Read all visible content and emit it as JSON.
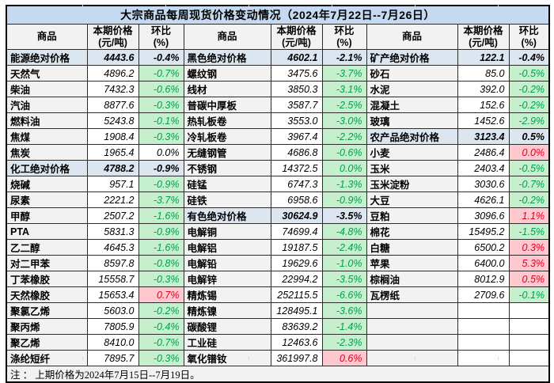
{
  "title": "大宗商品每周现货价格变动情况（2024年7月22日--7月26日）",
  "note": "注 ： 上期价格为2024年7月15日--7月19日。",
  "column_headers": {
    "name": "商品",
    "price": "本期价格\n(元/吨)",
    "change": "环比\n(%)"
  },
  "colors": {
    "title_bg": "#c5d9f1",
    "section_row_bg": "#dce6f1",
    "name_column_bg": "#f2f2f2",
    "decrease_bg": "#c6efce",
    "decrease_text": "#00a050",
    "increase_bg": "#ffc7ce",
    "increase_text": "#de0022",
    "border": "#000000"
  },
  "groups": [
    {
      "rows": [
        {
          "type": "section",
          "name": "能源绝对价格",
          "price": "4443.6",
          "change": "-0.4%"
        },
        {
          "type": "item",
          "name": "天然气",
          "price": "4896.2",
          "change": "-0.7%",
          "dir": "down"
        },
        {
          "type": "item",
          "name": "柴油",
          "price": "7432.3",
          "change": "-0.6%",
          "dir": "down"
        },
        {
          "type": "item",
          "name": "汽油",
          "price": "8877.6",
          "change": "-0.3%",
          "dir": "down"
        },
        {
          "type": "item",
          "name": "燃料油",
          "price": "5243.8",
          "change": "-0.1%",
          "dir": "down"
        },
        {
          "type": "item",
          "name": "焦煤",
          "price": "1908.4",
          "change": "-0.3%",
          "dir": "down"
        },
        {
          "type": "item",
          "name": "焦炭",
          "price": "1965.4",
          "change": "0.0%"
        },
        {
          "type": "section",
          "name": "化工绝对价格",
          "price": "4788.2",
          "change": "-0.9%"
        },
        {
          "type": "item",
          "name": "烧碱",
          "price": "957.1",
          "change": "-0.9%",
          "dir": "down"
        },
        {
          "type": "item",
          "name": "尿素",
          "price": "2221.2",
          "change": "-3.7%",
          "dir": "down"
        },
        {
          "type": "item",
          "name": "甲醇",
          "price": "2507.2",
          "change": "-1.6%",
          "dir": "down"
        },
        {
          "type": "item",
          "name": "PTA",
          "price": "5831.3",
          "change": "-0.9%",
          "dir": "down"
        },
        {
          "type": "item",
          "name": "乙二醇",
          "price": "4645.3",
          "change": "-1.6%",
          "dir": "down"
        },
        {
          "type": "item",
          "name": "对二甲苯",
          "price": "8597.8",
          "change": "-0.8%",
          "dir": "down"
        },
        {
          "type": "item",
          "name": "丁苯橡胶",
          "price": "15558.7",
          "change": "-0.3%",
          "dir": "down"
        },
        {
          "type": "item",
          "name": "天然橡胶",
          "price": "15653.4",
          "change": "0.7%",
          "dir": "up"
        },
        {
          "type": "item",
          "name": "聚氯乙烯",
          "price": "5603.0",
          "change": "-0.2%",
          "dir": "down"
        },
        {
          "type": "item",
          "name": "聚丙烯",
          "price": "7805.9",
          "change": "-0.4%",
          "dir": "down"
        },
        {
          "type": "item",
          "name": "聚乙烯",
          "price": "8410.0",
          "change": "-0.7%",
          "dir": "down"
        },
        {
          "type": "item",
          "name": "涤纶短纤",
          "price": "7895.7",
          "change": "-0.3%",
          "dir": "down"
        }
      ]
    },
    {
      "rows": [
        {
          "type": "section",
          "name": "黑色绝对价格",
          "price": "4602.1",
          "change": "-2.1%"
        },
        {
          "type": "item",
          "name": "螺纹钢",
          "price": "3475.6",
          "change": "-3.7%",
          "dir": "down"
        },
        {
          "type": "item",
          "name": "线材",
          "price": "3850.3",
          "change": "-3.1%",
          "dir": "down"
        },
        {
          "type": "item",
          "name": "普碳中厚板",
          "price": "3587.7",
          "change": "-2.5%",
          "dir": "down"
        },
        {
          "type": "item",
          "name": "热轧板卷",
          "price": "3553.0",
          "change": "-3.0%",
          "dir": "down"
        },
        {
          "type": "item",
          "name": "冷轧板卷",
          "price": "3967.4",
          "change": "-2.2%",
          "dir": "down"
        },
        {
          "type": "item",
          "name": "无缝钢管",
          "price": "4686.8",
          "change": "-0.6%",
          "dir": "down"
        },
        {
          "type": "item",
          "name": "不锈钢",
          "price": "14372.5",
          "change": "0.0%",
          "dir": "down"
        },
        {
          "type": "item",
          "name": "硅锰",
          "price": "6747.3",
          "change": "-1.3%",
          "dir": "down"
        },
        {
          "type": "item",
          "name": "硅铁",
          "price": "6958.6",
          "change": "-0.9%",
          "dir": "down"
        },
        {
          "type": "section",
          "name": "有色绝对价格",
          "price": "30624.9",
          "change": "-3.5%"
        },
        {
          "type": "item",
          "name": "电解铜",
          "price": "74699.4",
          "change": "-4.8%",
          "dir": "down"
        },
        {
          "type": "item",
          "name": "电解铝",
          "price": "19187.5",
          "change": "-2.4%",
          "dir": "down"
        },
        {
          "type": "item",
          "name": "电解铅",
          "price": "19629.6",
          "change": "-1.0%",
          "dir": "down"
        },
        {
          "type": "item",
          "name": "电解锌",
          "price": "22994.2",
          "change": "-3.5%",
          "dir": "down"
        },
        {
          "type": "item",
          "name": "精炼锡",
          "price": "252115.5",
          "change": "-6.6%",
          "dir": "down"
        },
        {
          "type": "item",
          "name": "精炼镍",
          "price": "128495.1",
          "change": "-3.6%",
          "dir": "down"
        },
        {
          "type": "item",
          "name": "碳酸锂",
          "price": "83639.2",
          "change": "-1.4%",
          "dir": "down"
        },
        {
          "type": "item",
          "name": "工业硅",
          "price": "12463.6",
          "change": "-2.3%",
          "dir": "down"
        },
        {
          "type": "item",
          "name": "氧化镨钕",
          "price": "361997.8",
          "change": "0.6%",
          "dir": "up"
        }
      ]
    },
    {
      "rows": [
        {
          "type": "section",
          "name": "矿产绝对价格",
          "price": "122.1",
          "change": "-0.4%"
        },
        {
          "type": "item",
          "name": "砂石",
          "price": "85.0",
          "change": "-0.5%",
          "dir": "down"
        },
        {
          "type": "item",
          "name": "水泥",
          "price": "392.0",
          "change": "-0.2%",
          "dir": "down"
        },
        {
          "type": "item",
          "name": "混凝土",
          "price": "152.6",
          "change": "-0.2%",
          "dir": "down"
        },
        {
          "type": "item",
          "name": "玻璃",
          "price": "1452.6",
          "change": "-2.9%",
          "dir": "down"
        },
        {
          "type": "section",
          "name": "农产品绝对价格",
          "price": "3123.4",
          "change": "0.5%"
        },
        {
          "type": "item",
          "name": "小麦",
          "price": "2486.4",
          "change": "0.0%",
          "dir": "up"
        },
        {
          "type": "item",
          "name": "玉米",
          "price": "2403.4",
          "change": "-0.5%",
          "dir": "down"
        },
        {
          "type": "item",
          "name": "玉米淀粉",
          "price": "3030.6",
          "change": "-0.7%",
          "dir": "down"
        },
        {
          "type": "item",
          "name": "大豆",
          "price": "4626.1",
          "change": "-0.2%",
          "dir": "down"
        },
        {
          "type": "item",
          "name": "豆粕",
          "price": "3096.6",
          "change": "1.1%",
          "dir": "up"
        },
        {
          "type": "item",
          "name": "棉花",
          "price": "15495.2",
          "change": "-1.5%",
          "dir": "down"
        },
        {
          "type": "item",
          "name": "白糖",
          "price": "6500.2",
          "change": "0.3%",
          "dir": "up"
        },
        {
          "type": "item",
          "name": "苹果",
          "price": "6400.0",
          "change": "5.3%",
          "dir": "up"
        },
        {
          "type": "item",
          "name": "棕榈油",
          "price": "8012.9",
          "change": "0.5%",
          "dir": "up"
        },
        {
          "type": "item",
          "name": "瓦楞纸",
          "price": "2709.6",
          "change": "-0.1%",
          "dir": "down"
        },
        {
          "type": "empty",
          "name": "",
          "price": "",
          "change": ""
        },
        {
          "type": "empty",
          "name": "",
          "price": "",
          "change": ""
        },
        {
          "type": "empty",
          "name": "",
          "price": "",
          "change": ""
        },
        {
          "type": "empty",
          "name": "",
          "price": "",
          "change": ""
        }
      ]
    }
  ]
}
